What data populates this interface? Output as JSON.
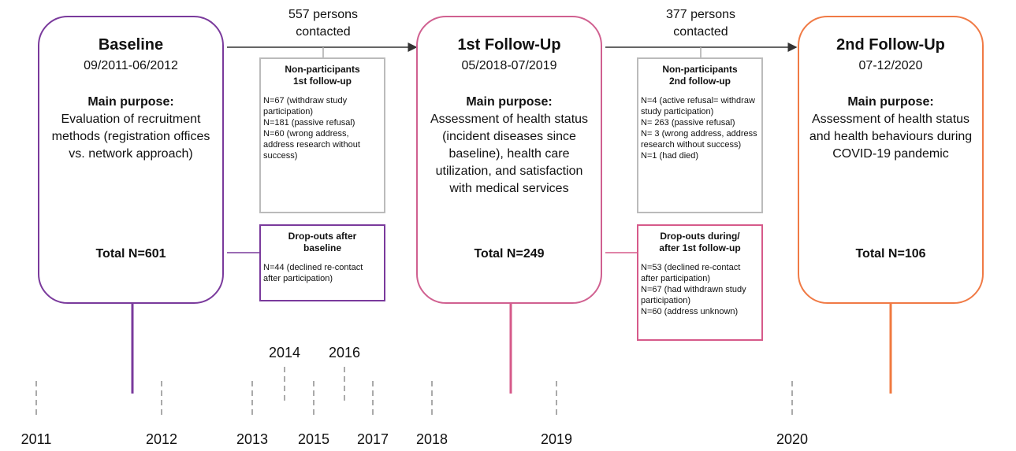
{
  "stages": [
    {
      "title": "Baseline",
      "dates": "09/2011-06/2012",
      "purpose_label": "Main purpose:",
      "purpose": "Evaluation of recruitment methods (registration offices vs. network approach)",
      "total": "Total N=601"
    },
    {
      "title": "1st Follow-Up",
      "dates": "05/2018-07/2019",
      "purpose_label": "Main purpose:",
      "purpose": "Assessment of health status (incident diseases since baseline), health care utilization, and satisfaction with medical services",
      "total": "Total N=249"
    },
    {
      "title": "2nd Follow-Up",
      "dates": "07-12/2020",
      "purpose_label": "Main purpose:",
      "purpose": "Assessment of health status and health behaviours during COVID-19 pandemic",
      "total": "Total N=106"
    }
  ],
  "contacts": [
    [
      "557 persons",
      "contacted"
    ],
    [
      "377 persons",
      "contacted"
    ]
  ],
  "nonparticipants": [
    {
      "title": [
        "Non-participants",
        "1st follow-up"
      ],
      "items": [
        "N=67 (withdraw study participation)",
        "N=181 (passive refusal)",
        "N=60 (wrong address, address research without success)"
      ]
    },
    {
      "title": [
        "Non-participants",
        "2nd follow-up"
      ],
      "items": [
        "N=4 (active refusal= withdraw study participation)",
        "N= 263 (passive refusal)",
        "N= 3 (wrong address, address research without success)",
        "N=1 (had died)"
      ]
    }
  ],
  "dropouts": [
    {
      "title": [
        "Drop-outs after",
        "baseline"
      ],
      "items": [
        "N=44 (declined re-contact after participation)"
      ]
    },
    {
      "title": [
        "Drop-outs during/",
        "after 1st follow-up"
      ],
      "items": [
        "N=53 (declined re-contact after participation)",
        "N=67 (had withdrawn study participation)",
        "N=60 (address unknown)"
      ]
    }
  ],
  "years": [
    "2011",
    "2012",
    "2013",
    "2014",
    "2015",
    "2016",
    "2017",
    "2018",
    "2019",
    "2020"
  ]
}
